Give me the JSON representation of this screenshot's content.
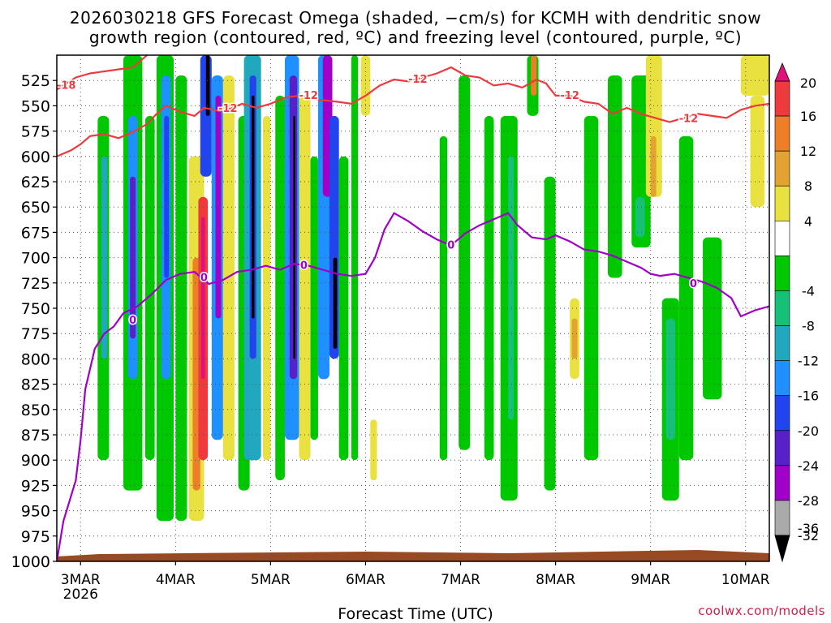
{
  "chart_data": {
    "type": "heatmap",
    "title": "2026030218 GFS Forecast Omega (shaded, −cm/s) for KCMH with dendritic snow",
    "title_line2": "growth region (contoured, red, ºC) and freezing level (contoured, purple, ºC)",
    "xlabel": "Forecast Time (UTC)",
    "credit": "coolwx.com/models",
    "x_ticks": [
      "3MAR",
      "4MAR",
      "5MAR",
      "6MAR",
      "7MAR",
      "8MAR",
      "9MAR",
      "10MAR"
    ],
    "x_year": "2026",
    "x_range_days": [
      2.75,
      10.25
    ],
    "y_ticks": [
      "525",
      "550",
      "575",
      "600",
      "625",
      "650",
      "675",
      "700",
      "725",
      "750",
      "775",
      "800",
      "825",
      "850",
      "875",
      "900",
      "925",
      "950",
      "975",
      "1000"
    ],
    "y_range_hpa": [
      500,
      1000
    ],
    "y_inverted": true,
    "grid": true,
    "colorbar": {
      "ticks": [
        "20",
        "16",
        "12",
        "8",
        "4",
        "-4",
        "-8",
        "-12",
        "-16",
        "-20",
        "-24",
        "-28",
        "-32",
        "-36"
      ],
      "bins": [
        {
          "range": [
            16,
            20
          ],
          "color": "#ee3a3c"
        },
        {
          "range": [
            12,
            16
          ],
          "color": "#ee7f28"
        },
        {
          "range": [
            8,
            12
          ],
          "color": "#e2a330"
        },
        {
          "range": [
            4,
            8
          ],
          "color": "#e8e140"
        },
        {
          "range": [
            -4,
            4
          ],
          "color": "#ffffff"
        },
        {
          "range": [
            -8,
            -4
          ],
          "color": "#00c800"
        },
        {
          "range": [
            -12,
            -8
          ],
          "color": "#16c078"
        },
        {
          "range": [
            -16,
            -12
          ],
          "color": "#22a8be"
        },
        {
          "range": [
            -20,
            -16
          ],
          "color": "#1e90ff"
        },
        {
          "range": [
            -24,
            -20
          ],
          "color": "#2244ee"
        },
        {
          "range": [
            -28,
            -24
          ],
          "color": "#5820c8"
        },
        {
          "range": [
            -32,
            -28
          ],
          "color": "#a000c8"
        },
        {
          "range": [
            -36,
            -32
          ],
          "color": "#aaaaaa"
        }
      ],
      "top_color": "#e0117a",
      "bottom_color": "#000000"
    },
    "contour_labels": {
      "dgz_red": [
        "-12",
        "-12",
        "-12",
        "-12",
        "-12",
        "-18"
      ],
      "freezing_purple": [
        "0",
        "0",
        "0",
        "0",
        "0"
      ]
    },
    "dgz_minus12_line": [
      [
        2.75,
        600
      ],
      [
        2.9,
        594
      ],
      [
        3.0,
        588
      ],
      [
        3.1,
        580
      ],
      [
        3.25,
        578
      ],
      [
        3.4,
        582
      ],
      [
        3.55,
        576
      ],
      [
        3.7,
        568
      ],
      [
        3.8,
        558
      ],
      [
        3.9,
        550
      ],
      [
        4.05,
        556
      ],
      [
        4.2,
        560
      ],
      [
        4.3,
        552
      ],
      [
        4.5,
        556
      ],
      [
        4.7,
        548
      ],
      [
        4.85,
        552
      ],
      [
        5.0,
        548
      ],
      [
        5.15,
        542
      ],
      [
        5.3,
        540
      ],
      [
        5.5,
        544
      ],
      [
        5.7,
        546
      ],
      [
        5.85,
        548
      ],
      [
        6.0,
        540
      ],
      [
        6.15,
        530
      ],
      [
        6.3,
        524
      ],
      [
        6.45,
        526
      ],
      [
        6.6,
        522
      ],
      [
        6.75,
        518
      ],
      [
        6.9,
        512
      ],
      [
        7.05,
        520
      ],
      [
        7.2,
        522
      ],
      [
        7.35,
        530
      ],
      [
        7.5,
        528
      ],
      [
        7.65,
        532
      ],
      [
        7.8,
        524
      ],
      [
        7.9,
        528
      ],
      [
        8.0,
        540
      ],
      [
        8.15,
        540
      ],
      [
        8.3,
        546
      ],
      [
        8.45,
        548
      ],
      [
        8.6,
        558
      ],
      [
        8.75,
        552
      ],
      [
        8.9,
        558
      ],
      [
        9.05,
        562
      ],
      [
        9.2,
        566
      ],
      [
        9.35,
        562
      ],
      [
        9.5,
        558
      ],
      [
        9.65,
        560
      ],
      [
        9.8,
        562
      ],
      [
        9.95,
        554
      ],
      [
        10.1,
        550
      ],
      [
        10.25,
        548
      ]
    ],
    "dgz_minus18_line": [
      [
        2.75,
        534
      ],
      [
        2.95,
        522
      ],
      [
        3.1,
        518
      ],
      [
        3.25,
        516
      ],
      [
        3.4,
        514
      ],
      [
        3.55,
        512
      ],
      [
        3.7,
        500
      ]
    ],
    "freezing_level_line": [
      [
        2.75,
        1000
      ],
      [
        2.82,
        960
      ],
      [
        2.95,
        920
      ],
      [
        3.0,
        880
      ],
      [
        3.05,
        830
      ],
      [
        3.15,
        790
      ],
      [
        3.25,
        775
      ],
      [
        3.35,
        768
      ],
      [
        3.45,
        755
      ],
      [
        3.6,
        748
      ],
      [
        3.75,
        736
      ],
      [
        3.9,
        722
      ],
      [
        4.05,
        716
      ],
      [
        4.2,
        714
      ],
      [
        4.35,
        726
      ],
      [
        4.5,
        722
      ],
      [
        4.65,
        714
      ],
      [
        4.8,
        712
      ],
      [
        4.95,
        708
      ],
      [
        5.1,
        712
      ],
      [
        5.25,
        706
      ],
      [
        5.4,
        708
      ],
      [
        5.55,
        712
      ],
      [
        5.7,
        716
      ],
      [
        5.85,
        718
      ],
      [
        6.0,
        716
      ],
      [
        6.1,
        700
      ],
      [
        6.2,
        672
      ],
      [
        6.3,
        656
      ],
      [
        6.45,
        664
      ],
      [
        6.6,
        674
      ],
      [
        6.75,
        682
      ],
      [
        6.9,
        688
      ],
      [
        7.05,
        676
      ],
      [
        7.2,
        668
      ],
      [
        7.35,
        662
      ],
      [
        7.5,
        656
      ],
      [
        7.6,
        668
      ],
      [
        7.75,
        680
      ],
      [
        7.9,
        682
      ],
      [
        8.0,
        678
      ],
      [
        8.15,
        684
      ],
      [
        8.3,
        692
      ],
      [
        8.45,
        694
      ],
      [
        8.6,
        698
      ],
      [
        8.75,
        704
      ],
      [
        8.9,
        710
      ],
      [
        9.0,
        716
      ],
      [
        9.1,
        718
      ],
      [
        9.25,
        716
      ],
      [
        9.4,
        720
      ],
      [
        9.55,
        724
      ],
      [
        9.7,
        730
      ],
      [
        9.85,
        740
      ],
      [
        9.95,
        758
      ],
      [
        10.1,
        752
      ],
      [
        10.25,
        748
      ]
    ],
    "omega_features": [
      {
        "x": [
          3.18,
          3.3
        ],
        "p": [
          560,
          900
        ],
        "color": "#00c800"
      },
      {
        "x": [
          3.22,
          3.28
        ],
        "p": [
          600,
          800
        ],
        "color": "#22a8be"
      },
      {
        "x": [
          3.45,
          3.65
        ],
        "p": [
          500,
          930
        ],
        "color": "#00c800"
      },
      {
        "x": [
          3.5,
          3.6
        ],
        "p": [
          560,
          820
        ],
        "color": "#1e90ff"
      },
      {
        "x": [
          3.52,
          3.58
        ],
        "p": [
          620,
          780
        ],
        "color": "#5820c8"
      },
      {
        "x": [
          3.68,
          3.78
        ],
        "p": [
          560,
          900
        ],
        "color": "#00c800"
      },
      {
        "x": [
          3.8,
          3.98
        ],
        "p": [
          500,
          960
        ],
        "color": "#00c800"
      },
      {
        "x": [
          3.85,
          3.95
        ],
        "p": [
          520,
          820
        ],
        "color": "#1e90ff"
      },
      {
        "x": [
          3.88,
          3.93
        ],
        "p": [
          560,
          720
        ],
        "color": "#2244ee"
      },
      {
        "x": [
          4.0,
          4.12
        ],
        "p": [
          520,
          960
        ],
        "color": "#00c800"
      },
      {
        "x": [
          4.14,
          4.3
        ],
        "p": [
          600,
          960
        ],
        "color": "#e8e140"
      },
      {
        "x": [
          4.18,
          4.26
        ],
        "p": [
          700,
          930
        ],
        "color": "#ee7f28"
      },
      {
        "x": [
          4.24,
          4.34
        ],
        "p": [
          640,
          900
        ],
        "color": "#ee3a3c"
      },
      {
        "x": [
          4.27,
          4.31
        ],
        "p": [
          660,
          820
        ],
        "color": "#e0117a"
      },
      {
        "x": [
          4.26,
          4.38
        ],
        "p": [
          500,
          620
        ],
        "color": "#2244ee"
      },
      {
        "x": [
          4.32,
          4.36
        ],
        "p": [
          500,
          560
        ],
        "color": "#000000"
      },
      {
        "x": [
          4.38,
          4.5
        ],
        "p": [
          520,
          880
        ],
        "color": "#1e90ff"
      },
      {
        "x": [
          4.42,
          4.48
        ],
        "p": [
          540,
          760
        ],
        "color": "#a000c8"
      },
      {
        "x": [
          4.5,
          4.62
        ],
        "p": [
          520,
          900
        ],
        "color": "#e8e140"
      },
      {
        "x": [
          4.66,
          4.78
        ],
        "p": [
          560,
          930
        ],
        "color": "#00c800"
      },
      {
        "x": [
          4.72,
          4.9
        ],
        "p": [
          500,
          900
        ],
        "color": "#22a8be"
      },
      {
        "x": [
          4.78,
          4.85
        ],
        "p": [
          520,
          800
        ],
        "color": "#2244ee"
      },
      {
        "x": [
          4.8,
          4.83
        ],
        "p": [
          540,
          760
        ],
        "color": "#000000"
      },
      {
        "x": [
          4.92,
          5.0
        ],
        "p": [
          560,
          900
        ],
        "color": "#e8e140"
      },
      {
        "x": [
          5.05,
          5.15
        ],
        "p": [
          540,
          920
        ],
        "color": "#00c800"
      },
      {
        "x": [
          5.15,
          5.3
        ],
        "p": [
          500,
          880
        ],
        "color": "#1e90ff"
      },
      {
        "x": [
          5.2,
          5.28
        ],
        "p": [
          520,
          820
        ],
        "color": "#5820c8"
      },
      {
        "x": [
          5.24,
          5.26
        ],
        "p": [
          560,
          800
        ],
        "color": "#000000"
      },
      {
        "x": [
          5.3,
          5.42
        ],
        "p": [
          540,
          900
        ],
        "color": "#e8e140"
      },
      {
        "x": [
          5.42,
          5.5
        ],
        "p": [
          600,
          880
        ],
        "color": "#00c800"
      },
      {
        "x": [
          5.5,
          5.62
        ],
        "p": [
          500,
          820
        ],
        "color": "#1e90ff"
      },
      {
        "x": [
          5.55,
          5.65
        ],
        "p": [
          500,
          640
        ],
        "color": "#a000c8"
      },
      {
        "x": [
          5.62,
          5.72
        ],
        "p": [
          560,
          800
        ],
        "color": "#2244ee"
      },
      {
        "x": [
          5.66,
          5.7
        ],
        "p": [
          700,
          790
        ],
        "color": "#000000"
      },
      {
        "x": [
          5.72,
          5.82
        ],
        "p": [
          600,
          900
        ],
        "color": "#00c800"
      },
      {
        "x": [
          5.85,
          5.92
        ],
        "p": [
          500,
          900
        ],
        "color": "#00c800"
      },
      {
        "x": [
          5.95,
          6.05
        ],
        "p": [
          500,
          560
        ],
        "color": "#e8e140"
      },
      {
        "x": [
          6.05,
          6.12
        ],
        "p": [
          860,
          920
        ],
        "color": "#e8e140"
      },
      {
        "x": [
          6.78,
          6.86
        ],
        "p": [
          580,
          900
        ],
        "color": "#00c800"
      },
      {
        "x": [
          6.98,
          7.1
        ],
        "p": [
          520,
          890
        ],
        "color": "#00c800"
      },
      {
        "x": [
          7.25,
          7.35
        ],
        "p": [
          560,
          900
        ],
        "color": "#00c800"
      },
      {
        "x": [
          7.42,
          7.6
        ],
        "p": [
          560,
          940
        ],
        "color": "#00c800"
      },
      {
        "x": [
          7.5,
          7.56
        ],
        "p": [
          600,
          860
        ],
        "color": "#16c078"
      },
      {
        "x": [
          7.7,
          7.82
        ],
        "p": [
          500,
          560
        ],
        "color": "#00c800"
      },
      {
        "x": [
          7.74,
          7.8
        ],
        "p": [
          500,
          540
        ],
        "color": "#ee7f28"
      },
      {
        "x": [
          7.88,
          8.0
        ],
        "p": [
          620,
          930
        ],
        "color": "#00c800"
      },
      {
        "x": [
          8.15,
          8.25
        ],
        "p": [
          740,
          820
        ],
        "color": "#e8e140"
      },
      {
        "x": [
          8.17,
          8.23
        ],
        "p": [
          760,
          800
        ],
        "color": "#e2a330"
      },
      {
        "x": [
          8.3,
          8.45
        ],
        "p": [
          560,
          900
        ],
        "color": "#00c800"
      },
      {
        "x": [
          8.55,
          8.7
        ],
        "p": [
          520,
          720
        ],
        "color": "#00c800"
      },
      {
        "x": [
          8.8,
          9.0
        ],
        "p": [
          520,
          690
        ],
        "color": "#00c800"
      },
      {
        "x": [
          8.84,
          8.94
        ],
        "p": [
          640,
          680
        ],
        "color": "#16c078"
      },
      {
        "x": [
          8.95,
          9.12
        ],
        "p": [
          500,
          640
        ],
        "color": "#e8e140"
      },
      {
        "x": [
          9.0,
          9.06
        ],
        "p": [
          580,
          640
        ],
        "color": "#e2a330"
      },
      {
        "x": [
          9.12,
          9.3
        ],
        "p": [
          740,
          940
        ],
        "color": "#00c800"
      },
      {
        "x": [
          9.16,
          9.26
        ],
        "p": [
          760,
          880
        ],
        "color": "#16c078"
      },
      {
        "x": [
          9.3,
          9.45
        ],
        "p": [
          580,
          900
        ],
        "color": "#00c800"
      },
      {
        "x": [
          9.55,
          9.75
        ],
        "p": [
          680,
          840
        ],
        "color": "#00c800"
      },
      {
        "x": [
          9.95,
          10.25
        ],
        "p": [
          500,
          540
        ],
        "color": "#e8e140"
      },
      {
        "x": [
          10.05,
          10.2
        ],
        "p": [
          540,
          650
        ],
        "color": "#e8e140"
      }
    ]
  }
}
